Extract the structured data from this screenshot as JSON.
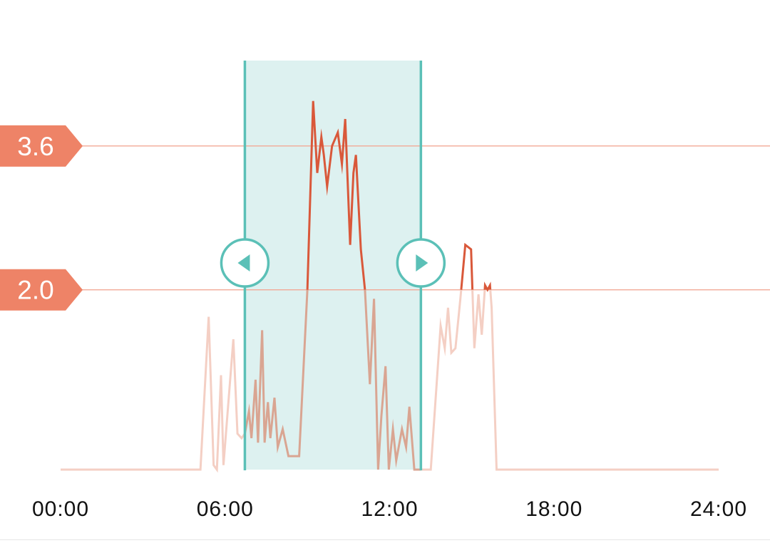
{
  "chart_data": {
    "type": "line",
    "series_points": [
      [
        0.0,
        0.0
      ],
      [
        8.5,
        0.0
      ],
      [
        9.0,
        1.7
      ],
      [
        9.3,
        0.05
      ],
      [
        9.5,
        0.0
      ],
      [
        9.75,
        1.05
      ],
      [
        9.9,
        0.05
      ],
      [
        10.5,
        1.45
      ],
      [
        10.75,
        0.4
      ],
      [
        11.0,
        0.35
      ],
      [
        11.2,
        0.4
      ],
      [
        11.45,
        0.65
      ],
      [
        11.6,
        0.35
      ],
      [
        11.85,
        1.0
      ],
      [
        12.0,
        0.3
      ],
      [
        12.25,
        1.55
      ],
      [
        12.4,
        0.3
      ],
      [
        12.6,
        0.75
      ],
      [
        12.75,
        0.35
      ],
      [
        13.0,
        0.8
      ],
      [
        13.2,
        0.25
      ],
      [
        13.5,
        0.45
      ],
      [
        13.85,
        0.15
      ],
      [
        14.5,
        0.15
      ],
      [
        15.0,
        2.0
      ],
      [
        15.35,
        4.1
      ],
      [
        15.6,
        3.3
      ],
      [
        15.85,
        3.7
      ],
      [
        16.0,
        3.5
      ],
      [
        16.2,
        3.15
      ],
      [
        16.5,
        3.6
      ],
      [
        16.85,
        3.75
      ],
      [
        17.1,
        3.4
      ],
      [
        17.3,
        3.9
      ],
      [
        17.6,
        2.5
      ],
      [
        17.8,
        3.3
      ],
      [
        17.95,
        3.5
      ],
      [
        18.25,
        2.45
      ],
      [
        18.5,
        2.0
      ],
      [
        18.8,
        0.95
      ],
      [
        19.05,
        1.9
      ],
      [
        19.3,
        0.0
      ],
      [
        19.5,
        0.6
      ],
      [
        19.75,
        1.15
      ],
      [
        19.95,
        0.0
      ],
      [
        20.2,
        0.45
      ],
      [
        20.4,
        0.1
      ],
      [
        20.75,
        0.45
      ],
      [
        21.0,
        0.25
      ],
      [
        21.2,
        0.7
      ],
      [
        21.5,
        0.0
      ],
      [
        22.5,
        0.0
      ],
      [
        23.1,
        1.6
      ],
      [
        23.35,
        1.35
      ],
      [
        23.55,
        1.8
      ],
      [
        23.75,
        1.3
      ],
      [
        24.0,
        1.35
      ],
      [
        24.3,
        1.9
      ],
      [
        24.6,
        2.5
      ],
      [
        24.95,
        2.45
      ],
      [
        25.15,
        1.35
      ],
      [
        25.4,
        1.95
      ],
      [
        25.6,
        1.5
      ],
      [
        25.8,
        2.05
      ],
      [
        25.95,
        2.0
      ],
      [
        26.1,
        2.05
      ],
      [
        26.2,
        1.8
      ],
      [
        26.5,
        0.0
      ],
      [
        40.0,
        0.0
      ]
    ],
    "x_ticks": [
      {
        "label": "00:00",
        "value": 0
      },
      {
        "label": "06:00",
        "value": 10
      },
      {
        "label": "12:00",
        "value": 20
      },
      {
        "label": "18:00",
        "value": 30
      },
      {
        "label": "24:00",
        "value": 40
      }
    ],
    "x_range": [
      0,
      40
    ],
    "y_range": [
      0,
      4.55
    ],
    "thresholds": [
      {
        "label": "3.6",
        "value": 3.6
      },
      {
        "label": "2.0",
        "value": 2.0
      }
    ],
    "selection": {
      "start": 11.2,
      "end": 21.9
    },
    "grid": false,
    "legend": "none"
  },
  "colors": {
    "line_outside": "#f4cfc4",
    "line_inside": "#d9a592",
    "line_above_threshold": "#d9583a",
    "threshold_line": "#f2a996",
    "threshold_tag": "#ee8367",
    "selection_fill": "#ddf1f0",
    "selection_edge": "#5bc0b7",
    "axis_text": "#111111"
  },
  "icons": {
    "left_handle": "caret-left-icon",
    "right_handle": "caret-right-icon"
  }
}
